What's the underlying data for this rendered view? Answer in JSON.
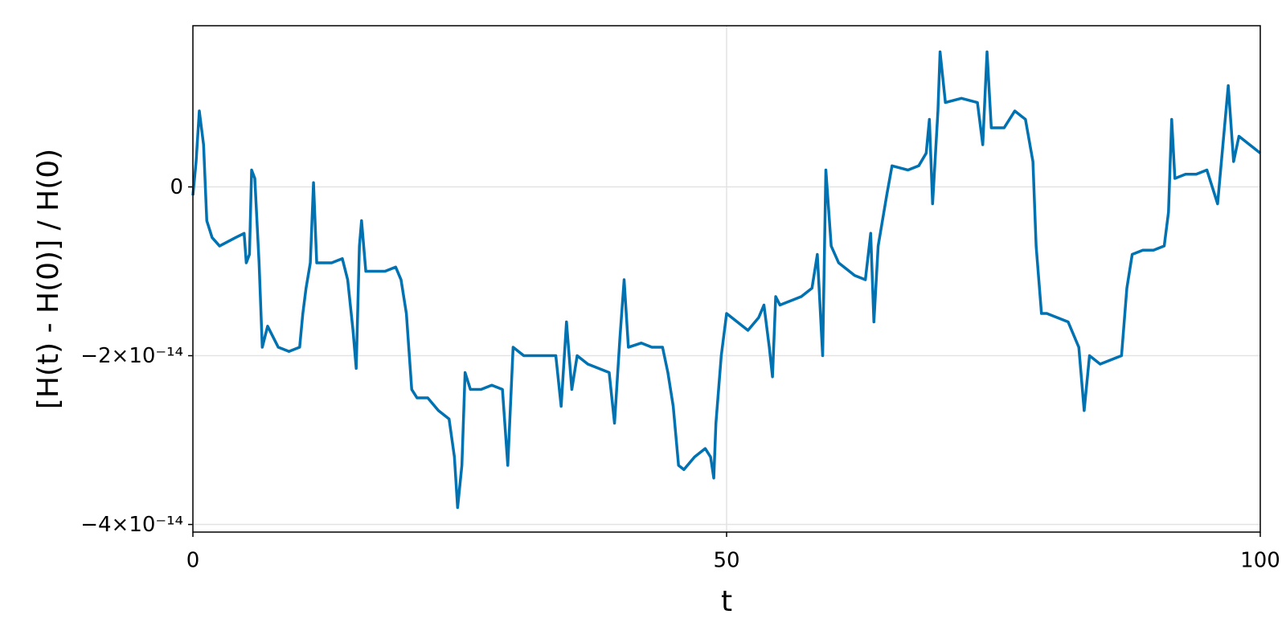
{
  "chart_data": {
    "type": "line",
    "xlabel": "t",
    "ylabel": "[H(t) - H(0)] / H(0)",
    "color": "#0072b2",
    "grid": true,
    "xlim": [
      0,
      100
    ],
    "xticks": [
      0,
      50,
      100
    ],
    "ylim": [
      -4.09e-14,
      1.91e-14
    ],
    "yticks": [
      {
        "value": -4e-14,
        "label": "−4×10⁻¹⁴"
      },
      {
        "value": -2e-14,
        "label": "−2×10⁻¹⁴"
      },
      0
    ],
    "x": [
      0,
      0.3,
      0.6,
      1,
      1.3,
      1.8,
      2.5,
      4,
      4.8,
      5,
      5.3,
      5.5,
      5.8,
      6.2,
      6.5,
      7,
      8,
      9,
      10,
      10.3,
      10.6,
      11,
      11.3,
      11.6,
      13,
      14,
      14.5,
      15,
      15.3,
      15.6,
      15.8,
      16.2,
      17,
      18,
      19,
      19.5,
      20,
      20.5,
      21,
      22,
      23,
      24,
      24.5,
      24.8,
      25.2,
      25.5,
      26,
      27,
      28,
      29,
      29.5,
      30,
      31,
      32,
      33,
      34,
      34.5,
      35,
      35.5,
      36,
      37,
      38,
      39,
      39.5,
      40,
      40.4,
      40.8,
      42,
      43,
      44,
      44.5,
      45,
      45.5,
      46,
      47,
      48,
      48.5,
      48.8,
      49,
      49.5,
      50,
      51,
      52,
      53,
      53.5,
      54,
      54.3,
      54.6,
      55,
      57,
      58,
      58.5,
      59,
      59.3,
      59.8,
      60.5,
      62,
      63,
      63.5,
      63.8,
      64.2,
      65,
      65.5,
      67,
      68,
      68.7,
      69,
      69.3,
      69.8,
      70,
      70.5,
      72,
      73.5,
      74,
      74.4,
      74.8,
      76,
      77,
      78,
      78.7,
      79,
      79.5,
      80,
      81,
      82,
      83,
      83.5,
      84,
      85,
      86,
      87,
      87.5,
      88,
      89,
      90,
      91,
      91.4,
      91.7,
      92,
      93,
      94,
      95,
      96,
      96.5,
      97,
      97.5,
      98,
      99,
      100
    ],
    "values": [
      -1e-15,
      3e-15,
      9e-15,
      5e-15,
      -4e-15,
      -6e-15,
      -7e-15,
      -6e-15,
      -5.5e-15,
      -9e-15,
      -8e-15,
      2e-15,
      1e-15,
      -9e-15,
      -1.9e-14,
      -1.65e-14,
      -1.9e-14,
      -1.95e-14,
      -1.9e-14,
      -1.5e-14,
      -1.2e-14,
      -9e-15,
      5e-16,
      -9e-15,
      -9e-15,
      -8.5e-15,
      -1.1e-14,
      -1.7e-14,
      -2.15e-14,
      -7e-15,
      -4e-15,
      -1e-14,
      -1e-14,
      -1e-14,
      -9.5e-15,
      -1.1e-14,
      -1.5e-14,
      -2.4e-14,
      -2.5e-14,
      -2.5e-14,
      -2.65e-14,
      -2.75e-14,
      -3.2e-14,
      -3.8e-14,
      -3.3e-14,
      -2.2e-14,
      -2.4e-14,
      -2.4e-14,
      -2.35e-14,
      -2.4e-14,
      -3.3e-14,
      -1.9e-14,
      -2e-14,
      -2e-14,
      -2e-14,
      -2e-14,
      -2.6e-14,
      -1.6e-14,
      -2.4e-14,
      -2e-14,
      -2.1e-14,
      -2.15e-14,
      -2.2e-14,
      -2.8e-14,
      -1.8e-14,
      -1.1e-14,
      -1.9e-14,
      -1.85e-14,
      -1.9e-14,
      -1.9e-14,
      -2.2e-14,
      -2.6e-14,
      -3.3e-14,
      -3.35e-14,
      -3.2e-14,
      -3.1e-14,
      -3.2e-14,
      -3.45e-14,
      -2.8e-14,
      -2e-14,
      -1.5e-14,
      -1.6e-14,
      -1.7e-14,
      -1.55e-14,
      -1.4e-14,
      -1.9e-14,
      -2.25e-14,
      -1.3e-14,
      -1.4e-14,
      -1.3e-14,
      -1.2e-14,
      -8e-15,
      -2e-14,
      2e-15,
      -7e-15,
      -9e-15,
      -1.05e-14,
      -1.1e-14,
      -5.5e-15,
      -1.6e-14,
      -7e-15,
      -1e-15,
      2.5e-15,
      2e-15,
      2.5e-15,
      4e-15,
      8e-15,
      -2e-15,
      9e-15,
      1.6e-14,
      1e-14,
      1.05e-14,
      1e-14,
      5e-15,
      1.6e-14,
      7e-15,
      7e-15,
      9e-15,
      8e-15,
      3e-15,
      -7e-15,
      -1.5e-14,
      -1.5e-14,
      -1.55e-14,
      -1.6e-14,
      -1.9e-14,
      -2.65e-14,
      -2e-14,
      -2.1e-14,
      -2.05e-14,
      -2e-14,
      -1.2e-14,
      -8e-15,
      -7.5e-15,
      -7.5e-15,
      -7e-15,
      -3e-15,
      8e-15,
      1e-15,
      1.5e-15,
      1.5e-15,
      2e-15,
      -2e-15,
      5e-15,
      1.2e-14,
      3e-15,
      6e-15,
      5e-15,
      4e-15
    ]
  }
}
